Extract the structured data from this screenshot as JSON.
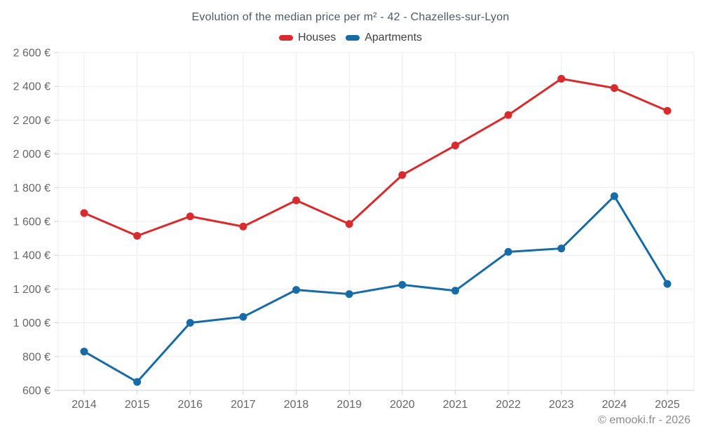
{
  "header": {
    "title": "Evolution of the median price per m² - 42 - Chazelles-sur-Lyon"
  },
  "footer": {
    "credit": "© emooki.fr - 2026"
  },
  "colors": {
    "houses": "#d92b2e",
    "apartments": "#176ba6",
    "grid_line": "#ededed",
    "axis_line": "#d2d2d2",
    "tick_text": "#666666",
    "title_text": "#4e5a63",
    "legend_text": "#3f3f3f",
    "footer_text": "#8a8a8a",
    "background": "#ffffff"
  },
  "chart_data": {
    "type": "line",
    "title": "Evolution of the median price per m² - 42 - Chazelles-sur-Lyon",
    "categories": [
      "2014",
      "2015",
      "2016",
      "2017",
      "2018",
      "2019",
      "2020",
      "2021",
      "2022",
      "2023",
      "2024",
      "2025"
    ],
    "series": [
      {
        "name": "Houses",
        "color": "#d92b2e",
        "values": [
          1650,
          1515,
          1630,
          1570,
          1725,
          1585,
          1875,
          2050,
          2230,
          2445,
          2390,
          2255
        ]
      },
      {
        "name": "Apartments",
        "color": "#176ba6",
        "values": [
          830,
          650,
          1000,
          1035,
          1195,
          1170,
          1225,
          1190,
          1420,
          1440,
          1750,
          1230
        ]
      }
    ],
    "xlabel": "",
    "ylabel": "",
    "ylim": [
      600,
      2600
    ],
    "y_ticks": [
      {
        "value": 600,
        "label": "600 €"
      },
      {
        "value": 800,
        "label": "800 €"
      },
      {
        "value": 1000,
        "label": "1 000 €"
      },
      {
        "value": 1200,
        "label": "1 200 €"
      },
      {
        "value": 1400,
        "label": "1 400 €"
      },
      {
        "value": 1600,
        "label": "1 600 €"
      },
      {
        "value": 1800,
        "label": "1 800 €"
      },
      {
        "value": 2000,
        "label": "2 000 €"
      },
      {
        "value": 2200,
        "label": "2 200 €"
      },
      {
        "value": 2400,
        "label": "2 400 €"
      },
      {
        "value": 2600,
        "label": "2 600 €"
      }
    ],
    "grid": true,
    "legend_position": "top",
    "marker": "circle"
  }
}
